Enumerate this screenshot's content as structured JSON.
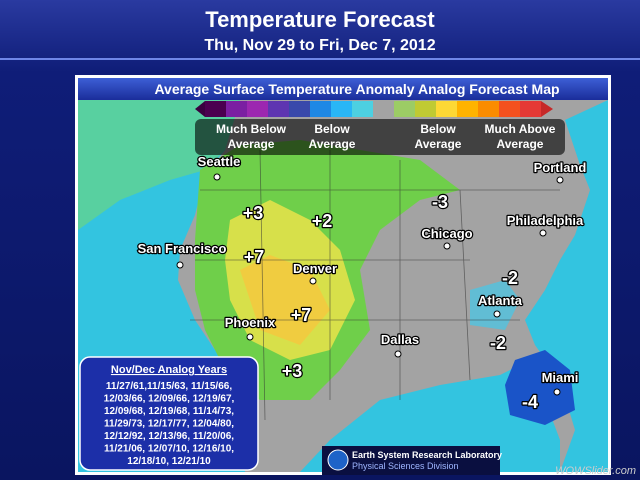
{
  "header": {
    "title": "Temperature Forecast",
    "subtitle": "Thu, Nov 29 to Fri, Dec 7, 2012"
  },
  "map": {
    "title": "Average Surface Temperature Anomaly Analog Forecast Map",
    "legend": [
      "Much Below Average",
      "Below Average",
      "Below Average",
      "Much Above Average"
    ],
    "cities": [
      "Seattle",
      "Portland",
      "San Francisco",
      "Denver",
      "Chicago",
      "Philadelphia",
      "Atlanta",
      "Phoenix",
      "Dallas",
      "Miami"
    ],
    "anomalies": [
      "+3",
      "+2",
      "+7",
      "+7",
      "+3",
      "-3",
      "-2",
      "-2",
      "-4"
    ]
  },
  "analog_box": {
    "title": "Nov/Dec Analog Years",
    "lines": [
      "11/27/61,11/15/63, 11/15/66,",
      "12/03/66, 12/09/66, 12/19/67,",
      "12/09/68, 12/19/68, 11/14/73,",
      "11/29/73, 12/17/77, 12/04/80,",
      "12/12/92, 12/13/96, 11/20/06,",
      "11/21/06, 12/07/10, 12/16/10,",
      "12/18/10, 12/21/10"
    ]
  },
  "footer": {
    "org": "Earth System Research Laboratory",
    "division": "Physical Sciences Division",
    "watermark": "WOWSlider.com"
  }
}
